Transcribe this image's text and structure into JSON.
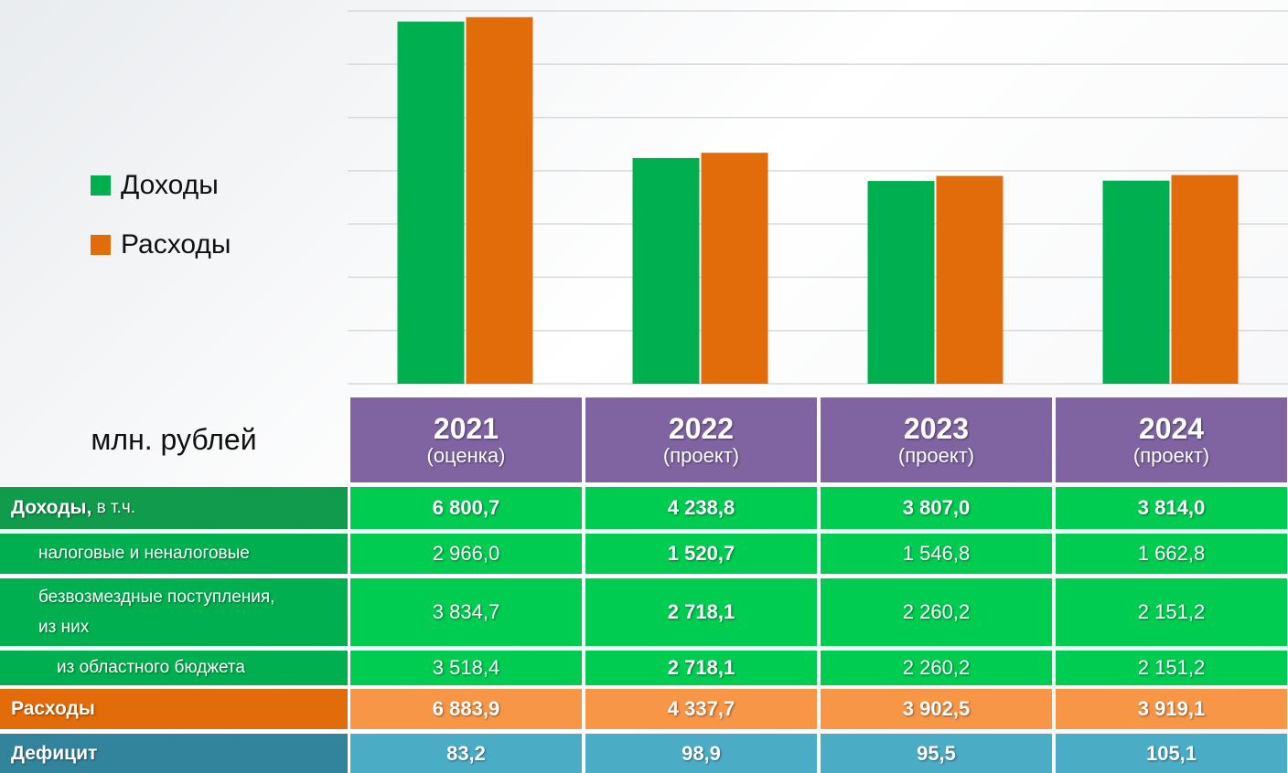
{
  "chart_data": {
    "type": "bar",
    "categories": [
      "2021",
      "2022",
      "2023",
      "2024"
    ],
    "series": [
      {
        "name": "Доходы",
        "color": "#00b050",
        "values": [
          6800.7,
          4238.8,
          3807.0,
          3814.0
        ],
        "value_labels": [
          "6 800,7",
          "4 238,8",
          "3 807,0",
          "3 814,0"
        ]
      },
      {
        "name": "Расходы",
        "color": "#e36c0a",
        "values": [
          6883.9,
          4337.7,
          3902.5,
          3919.1
        ],
        "value_labels": [
          "6 883,9",
          "4 337,7",
          "3 902,5",
          "3 919,1"
        ]
      }
    ],
    "ylim": [
      0,
      7000
    ],
    "yticks": [
      0,
      1000,
      2000,
      3000,
      4000,
      5000,
      6000,
      7000
    ],
    "grid": true
  },
  "table": {
    "unit": "млн. рублей",
    "header_notes": [
      "(оценка)",
      "(проект)",
      "(проект)",
      "(проект)"
    ],
    "rows": [
      {
        "label": "Доходы,",
        "note": "в т.ч."
      },
      {
        "label": "налоговые и неналоговые",
        "cells": [
          "2 966,0",
          "1 520,7",
          "1 546,8",
          "1 662,8"
        ]
      },
      {
        "label": "безвозмездные поступления, из них",
        "cells": [
          "3 834,7",
          "2 718,1",
          "2 260,2",
          "2 151,2"
        ]
      },
      {
        "label": "из областного бюджета",
        "cells": [
          "3 518,4",
          "2 718,1",
          "2 260,2",
          "2 151,2"
        ]
      },
      {
        "label": "Расходы"
      },
      {
        "label": "Дефицит",
        "cells": [
          "83,2",
          "98,9",
          "95,5",
          "105,1"
        ]
      }
    ]
  }
}
